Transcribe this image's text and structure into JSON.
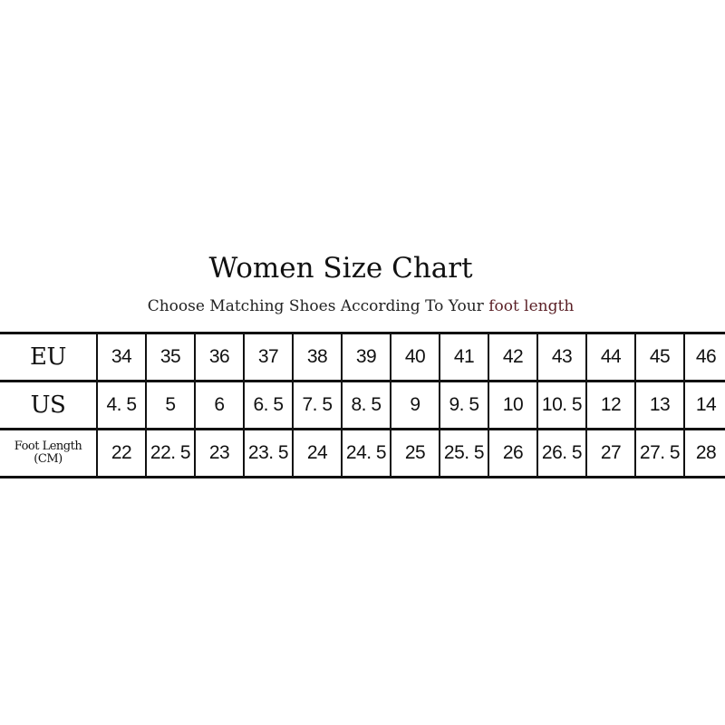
{
  "title": "Women Size Chart",
  "subtitle": {
    "text": "Choose Matching Shoes According To Your ",
    "highlight": "foot length"
  },
  "colors": {
    "text": "#111111",
    "highlight": "#5a1f25"
  },
  "rows": [
    {
      "label": "EU",
      "values": [
        "34",
        "35",
        "36",
        "37",
        "38",
        "39",
        "40",
        "41",
        "42",
        "43",
        "44",
        "45",
        "46"
      ]
    },
    {
      "label": "US",
      "values": [
        "4. 5",
        "5",
        "6",
        "6. 5",
        "7. 5",
        "8. 5",
        "9",
        "9. 5",
        "10",
        "10. 5",
        "12",
        "13",
        "14"
      ]
    },
    {
      "label": "Foot Length",
      "sublabel": "(CM)",
      "values": [
        "22",
        "22. 5",
        "23",
        "23. 5",
        "24",
        "24. 5",
        "25",
        "25. 5",
        "26",
        "26. 5",
        "27",
        "27. 5",
        "28"
      ]
    }
  ]
}
